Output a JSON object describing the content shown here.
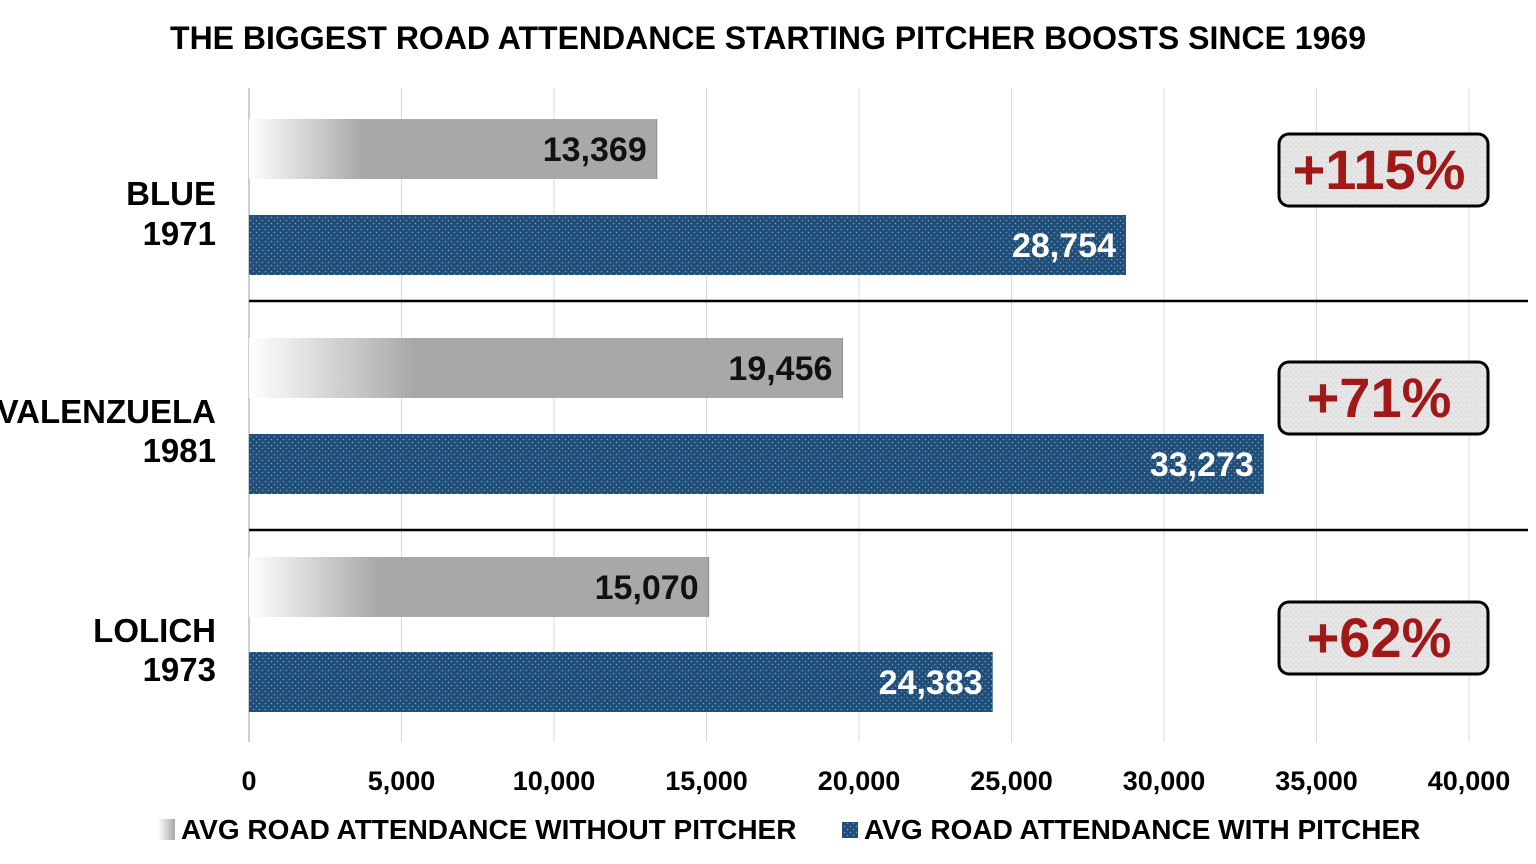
{
  "chart_data": {
    "type": "bar",
    "orientation": "horizontal",
    "title": "THE BIGGEST ROAD ATTENDANCE STARTING PITCHER BOOSTS SINCE 1969",
    "categories": [
      {
        "name": "BLUE",
        "year": "1971",
        "boost": "+115%"
      },
      {
        "name": "VALENZUELA",
        "year": "1981",
        "boost": "+71%"
      },
      {
        "name": "LOLICH",
        "year": "1973",
        "boost": "+62%"
      }
    ],
    "series": [
      {
        "name": "AVG ROAD ATTENDANCE WITHOUT PITCHER",
        "values": [
          13369,
          19456,
          15070
        ],
        "labels": [
          "13,369",
          "19,456",
          "15,070"
        ],
        "color": "#a8a8a8"
      },
      {
        "name": "AVG ROAD ATTENDANCE WITH PITCHER",
        "values": [
          28754,
          33273,
          24383
        ],
        "labels": [
          "28,754",
          "33,273",
          "24,383"
        ],
        "color": "#1f4e79"
      }
    ],
    "xlim": [
      0,
      40000
    ],
    "x_ticks": [
      0,
      5000,
      10000,
      15000,
      20000,
      25000,
      30000,
      35000,
      40000
    ],
    "x_tick_labels": [
      "0",
      "5,000",
      "10,000",
      "15,000",
      "20,000",
      "25,000",
      "30,000",
      "35,000",
      "40,000"
    ],
    "grid": true,
    "legend_position": "bottom",
    "boost_color": "#a01818"
  }
}
